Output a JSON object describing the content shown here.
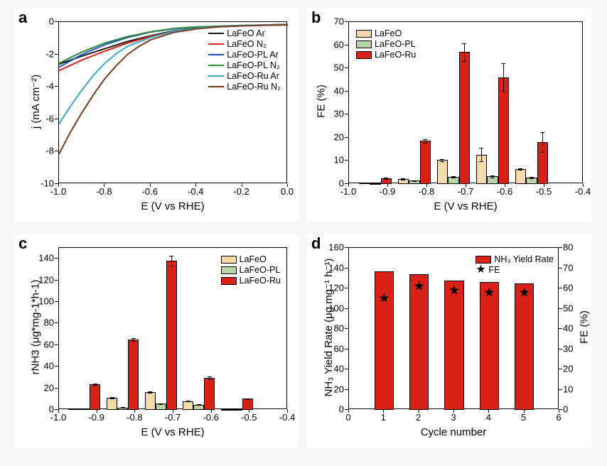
{
  "global": {
    "bg_color": "#f8f8f8",
    "panel_bg": "#ffffff",
    "font_family": "Arial",
    "text_color": "#000000"
  },
  "colors": {
    "LaFeO": "#f4d9a8",
    "LaFeO_PL": "#b8d6a5",
    "LaFeO_Ru": "#d92118",
    "line_black": "#1a1a1a",
    "line_red": "#d92118",
    "line_blue": "#2050c0",
    "line_green": "#2a8a3a",
    "line_cyan": "#3aa8c8",
    "line_brown": "#7a3a20"
  },
  "panel_a": {
    "label": "a",
    "xlabel": "E (V vs RHE)",
    "ylabel": "j (mA cm⁻²)",
    "xlim": [
      -1.0,
      0.0
    ],
    "ylim": [
      -10,
      0
    ],
    "xticks": [
      -1.0,
      -0.8,
      -0.6,
      -0.4,
      -0.2,
      0.0
    ],
    "yticks": [
      -10,
      -8,
      -6,
      -4,
      -2,
      0
    ],
    "legend": [
      {
        "label": "LaFeO Ar",
        "colorKey": "line_black"
      },
      {
        "label": "LaFeO N₂",
        "colorKey": "line_red"
      },
      {
        "label": "LaFeO-PL Ar",
        "colorKey": "line_blue"
      },
      {
        "label": "LaFeO-PL N₂",
        "colorKey": "line_green"
      },
      {
        "label": "LaFeO-Ru Ar",
        "colorKey": "line_cyan"
      },
      {
        "label": "LaFeO-Ru N₂",
        "colorKey": "line_brown"
      }
    ],
    "series": [
      {
        "colorKey": "line_black",
        "points": [
          [
            -1.0,
            -2.6
          ],
          [
            -0.9,
            -2.1
          ],
          [
            -0.8,
            -1.65
          ],
          [
            -0.7,
            -1.2
          ],
          [
            -0.6,
            -0.85
          ],
          [
            -0.5,
            -0.55
          ],
          [
            -0.4,
            -0.38
          ],
          [
            -0.3,
            -0.28
          ],
          [
            -0.2,
            -0.22
          ],
          [
            -0.1,
            -0.18
          ],
          [
            0.0,
            -0.15
          ]
        ]
      },
      {
        "colorKey": "line_red",
        "points": [
          [
            -1.0,
            -3.0
          ],
          [
            -0.9,
            -2.35
          ],
          [
            -0.8,
            -1.8
          ],
          [
            -0.7,
            -1.3
          ],
          [
            -0.6,
            -0.9
          ],
          [
            -0.5,
            -0.58
          ],
          [
            -0.4,
            -0.4
          ],
          [
            -0.3,
            -0.3
          ],
          [
            -0.2,
            -0.23
          ],
          [
            -0.1,
            -0.19
          ],
          [
            0.0,
            -0.16
          ]
        ]
      },
      {
        "colorKey": "line_blue",
        "points": [
          [
            -1.0,
            -2.8
          ],
          [
            -0.9,
            -2.0
          ],
          [
            -0.8,
            -1.4
          ],
          [
            -0.7,
            -0.95
          ],
          [
            -0.6,
            -0.62
          ],
          [
            -0.5,
            -0.42
          ],
          [
            -0.4,
            -0.32
          ],
          [
            -0.3,
            -0.26
          ],
          [
            -0.2,
            -0.22
          ],
          [
            -0.1,
            -0.19
          ],
          [
            0.0,
            -0.17
          ]
        ]
      },
      {
        "colorKey": "line_green",
        "points": [
          [
            -1.0,
            -2.55
          ],
          [
            -0.9,
            -1.85
          ],
          [
            -0.8,
            -1.3
          ],
          [
            -0.7,
            -0.9
          ],
          [
            -0.6,
            -0.6
          ],
          [
            -0.5,
            -0.4
          ],
          [
            -0.4,
            -0.3
          ],
          [
            -0.3,
            -0.25
          ],
          [
            -0.2,
            -0.21
          ],
          [
            -0.1,
            -0.18
          ],
          [
            0.0,
            -0.16
          ]
        ]
      },
      {
        "colorKey": "line_cyan",
        "points": [
          [
            -1.0,
            -6.3
          ],
          [
            -0.95,
            -5.2
          ],
          [
            -0.9,
            -4.2
          ],
          [
            -0.85,
            -3.3
          ],
          [
            -0.8,
            -2.55
          ],
          [
            -0.75,
            -1.95
          ],
          [
            -0.7,
            -1.5
          ],
          [
            -0.6,
            -0.95
          ],
          [
            -0.5,
            -0.58
          ],
          [
            -0.4,
            -0.38
          ],
          [
            -0.3,
            -0.28
          ],
          [
            -0.2,
            -0.22
          ],
          [
            -0.1,
            -0.19
          ],
          [
            0.0,
            -0.17
          ]
        ]
      },
      {
        "colorKey": "line_brown",
        "points": [
          [
            -1.0,
            -8.15
          ],
          [
            -0.95,
            -6.8
          ],
          [
            -0.9,
            -5.6
          ],
          [
            -0.85,
            -4.5
          ],
          [
            -0.8,
            -3.5
          ],
          [
            -0.75,
            -2.7
          ],
          [
            -0.7,
            -2.0
          ],
          [
            -0.65,
            -1.5
          ],
          [
            -0.6,
            -1.1
          ],
          [
            -0.5,
            -0.65
          ],
          [
            -0.4,
            -0.42
          ],
          [
            -0.3,
            -0.3
          ],
          [
            -0.2,
            -0.24
          ],
          [
            -0.1,
            -0.2
          ],
          [
            0.0,
            -0.18
          ]
        ]
      }
    ]
  },
  "panel_b": {
    "label": "b",
    "xlabel": "E (V vs RHE)",
    "ylabel": "FE (%)",
    "xlim": [
      -1.0,
      -0.4
    ],
    "ylim": [
      0,
      70
    ],
    "xticks": [
      -1.0,
      -0.9,
      -0.8,
      -0.7,
      -0.6,
      -0.5,
      -0.4
    ],
    "yticks": [
      0,
      10,
      20,
      30,
      40,
      50,
      60,
      70
    ],
    "legend": [
      {
        "label": "LaFeO",
        "colorKey": "LaFeO"
      },
      {
        "label": "LaFeO-PL",
        "colorKey": "LaFeO_PL"
      },
      {
        "label": "LaFeO-Ru",
        "colorKey": "LaFeO_Ru"
      }
    ],
    "groups_x": [
      -0.933,
      -0.833,
      -0.733,
      -0.633,
      -0.533,
      -0.467
    ],
    "bar_width": 0.028,
    "data": {
      "LaFeO": [
        0.5,
        2.1,
        10.3,
        12.7,
        6.4,
        0
      ],
      "LaFeO_PL": [
        0.3,
        1.4,
        3.2,
        3.3,
        2.7,
        0
      ],
      "LaFeO_Ru": [
        2.4,
        18.6,
        57.0,
        46.2,
        18.1,
        0
      ]
    },
    "errors": {
      "LaFeO": [
        0.15,
        0.3,
        0.5,
        3,
        0.4,
        0
      ],
      "LaFeO_PL": [
        0.1,
        0.2,
        0.3,
        0.4,
        0.3,
        0
      ],
      "LaFeO_Ru": [
        0.4,
        0.7,
        3.8,
        6.1,
        4.3,
        0
      ]
    }
  },
  "panel_c": {
    "label": "c",
    "xlabel": "E (V vs RHE)",
    "ylabel": "rNH3 (μg*mg-1*h-1)",
    "xlim": [
      -1.0,
      -0.4
    ],
    "ylim": [
      0,
      150
    ],
    "xticks": [
      -1.0,
      -0.9,
      -0.8,
      -0.7,
      -0.6,
      -0.5,
      -0.4
    ],
    "yticks": [
      0,
      20,
      40,
      60,
      80,
      100,
      120,
      140
    ],
    "legend": [
      {
        "label": "LaFeO",
        "colorKey": "LaFeO"
      },
      {
        "label": "LaFeO-PL",
        "colorKey": "LaFeO_PL"
      },
      {
        "label": "LaFeO-Ru",
        "colorKey": "LaFeO_Ru"
      }
    ],
    "groups_x": [
      -0.933,
      -0.833,
      -0.733,
      -0.633,
      -0.533,
      -0.467
    ],
    "bar_width": 0.028,
    "data": {
      "LaFeO": [
        1.2,
        11.3,
        16.2,
        8.2,
        0.8,
        0
      ],
      "LaFeO_PL": [
        1.0,
        2.3,
        5.8,
        4.8,
        0.5,
        0
      ],
      "LaFeO_Ru": [
        23.6,
        65.2,
        138.0,
        29.8,
        10.2,
        0
      ]
    },
    "errors": {
      "LaFeO": [
        0.2,
        0.5,
        0.6,
        0.5,
        0.2,
        0
      ],
      "LaFeO_PL": [
        0.2,
        0.3,
        0.4,
        0.4,
        0.2,
        0
      ],
      "LaFeO_Ru": [
        0.8,
        1.2,
        4.5,
        1.3,
        0.6,
        0
      ]
    }
  },
  "panel_d": {
    "label": "d",
    "xlabel": "Cycle number",
    "ylabel_l": "NH₃ Yield Rate (μg mg⁻¹ h⁻¹)",
    "ylabel_r": "FE (%)",
    "xlim": [
      0,
      6
    ],
    "ylim_l": [
      0,
      160
    ],
    "ylim_r": [
      0,
      80
    ],
    "xticks": [
      0,
      1,
      2,
      3,
      4,
      5,
      6
    ],
    "yticks_l": [
      0,
      20,
      40,
      60,
      80,
      100,
      120,
      140,
      160
    ],
    "yticks_r": [
      0,
      10,
      20,
      30,
      40,
      50,
      60,
      70,
      80
    ],
    "bar_color_key": "LaFeO_Ru",
    "bar_width": 0.55,
    "bars_x": [
      1,
      2,
      3,
      4,
      5
    ],
    "bars_y": [
      137,
      134,
      128,
      126,
      125
    ],
    "fe_points": [
      [
        1,
        55
      ],
      [
        2,
        61
      ],
      [
        3,
        59
      ],
      [
        4,
        58
      ],
      [
        5,
        58
      ]
    ],
    "legend": [
      {
        "type": "box",
        "label": "NH₃ Yield Rate",
        "colorKey": "LaFeO_Ru"
      },
      {
        "type": "star",
        "label": "FE"
      }
    ]
  }
}
